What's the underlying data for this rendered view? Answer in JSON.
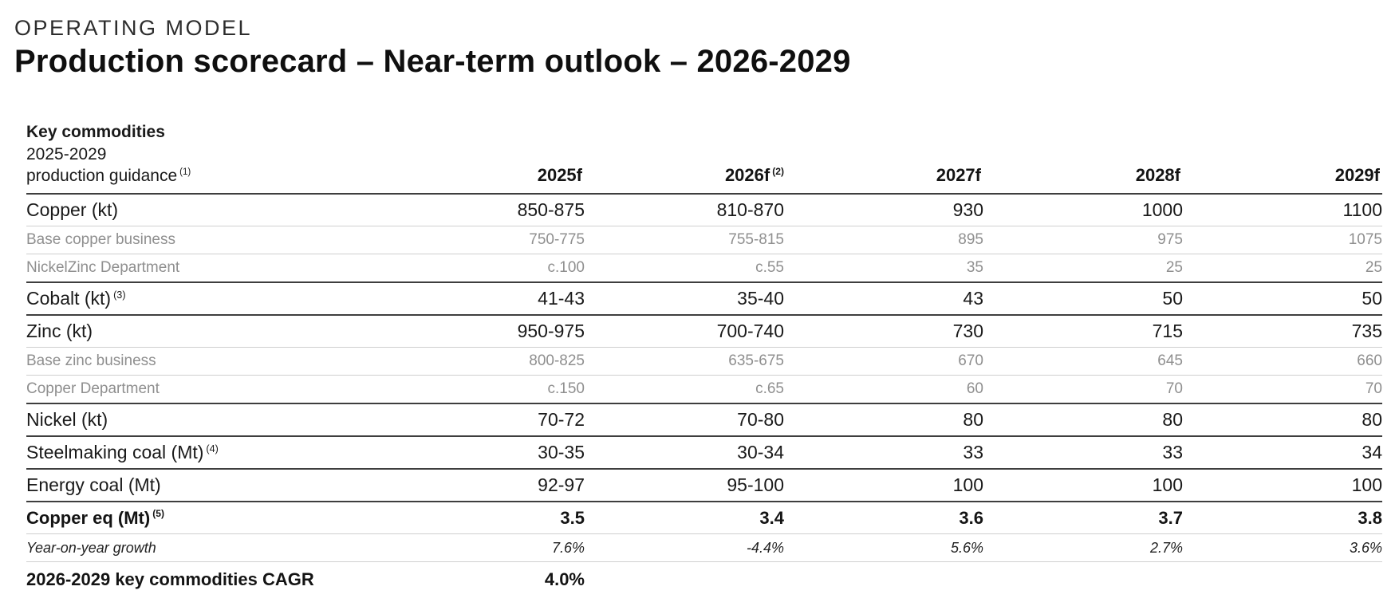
{
  "page": {
    "eyebrow": "OPERATING MODEL",
    "title": "Production scorecard – Near-term outlook – 2026-2029"
  },
  "table": {
    "header": {
      "col0_line1": "Key commodities",
      "col0_line2": "2025-2029",
      "col0_line3": "production guidance",
      "col0_sup": "(1)",
      "columns": [
        {
          "label": "2025f",
          "sup": ""
        },
        {
          "label": "2026f",
          "sup": "(2)"
        },
        {
          "label": "2027f",
          "sup": ""
        },
        {
          "label": "2028f",
          "sup": ""
        },
        {
          "label": "2029f",
          "sup": ""
        }
      ]
    },
    "rows": [
      {
        "label": "Copper (kt)",
        "sup": "",
        "style": "major",
        "values": [
          "850-875",
          "810-870",
          "930",
          "1000",
          "1100"
        ]
      },
      {
        "label": "Base copper business",
        "sup": "",
        "style": "sub",
        "values": [
          "750-775",
          "755-815",
          "895",
          "975",
          "1075"
        ]
      },
      {
        "label": "NickelZinc Department",
        "sup": "",
        "style": "sub",
        "values": [
          "c.100",
          "c.55",
          "35",
          "25",
          "25"
        ]
      },
      {
        "label": "Cobalt (kt)",
        "sup": "(3)",
        "style": "major",
        "values": [
          "41-43",
          "35-40",
          "43",
          "50",
          "50"
        ]
      },
      {
        "label": "Zinc (kt)",
        "sup": "",
        "style": "major",
        "values": [
          "950-975",
          "700-740",
          "730",
          "715",
          "735"
        ]
      },
      {
        "label": "Base zinc business",
        "sup": "",
        "style": "sub",
        "values": [
          "800-825",
          "635-675",
          "670",
          "645",
          "660"
        ]
      },
      {
        "label": "Copper Department",
        "sup": "",
        "style": "sub",
        "values": [
          "c.150",
          "c.65",
          "60",
          "70",
          "70"
        ]
      },
      {
        "label": "Nickel (kt)",
        "sup": "",
        "style": "major",
        "values": [
          "70-72",
          "70-80",
          "80",
          "80",
          "80"
        ]
      },
      {
        "label": "Steelmaking coal (Mt)",
        "sup": "(4)",
        "style": "major",
        "values": [
          "30-35",
          "30-34",
          "33",
          "33",
          "34"
        ]
      },
      {
        "label": "Energy coal (Mt)",
        "sup": "",
        "style": "major",
        "values": [
          "92-97",
          "95-100",
          "100",
          "100",
          "100"
        ]
      },
      {
        "label": "Copper eq (Mt)",
        "sup": "(5)",
        "style": "major-bold",
        "values": [
          "3.5",
          "3.4",
          "3.6",
          "3.7",
          "3.8"
        ]
      },
      {
        "label": "Year-on-year growth",
        "sup": "",
        "style": "italic",
        "values": [
          "7.6%",
          "-4.4%",
          "5.6%",
          "2.7%",
          "3.6%"
        ]
      },
      {
        "label": "2026-2029 key commodities CAGR",
        "sup": "",
        "style": "bold-summary",
        "values": [
          "4.0%",
          "",
          "",
          "",
          ""
        ]
      }
    ]
  },
  "colors": {
    "text_primary": "#1a1a1a",
    "text_secondary": "#8f8f8f",
    "divider_light": "#cfcfcf",
    "divider_dark": "#3e3e3e",
    "background": "#ffffff"
  }
}
